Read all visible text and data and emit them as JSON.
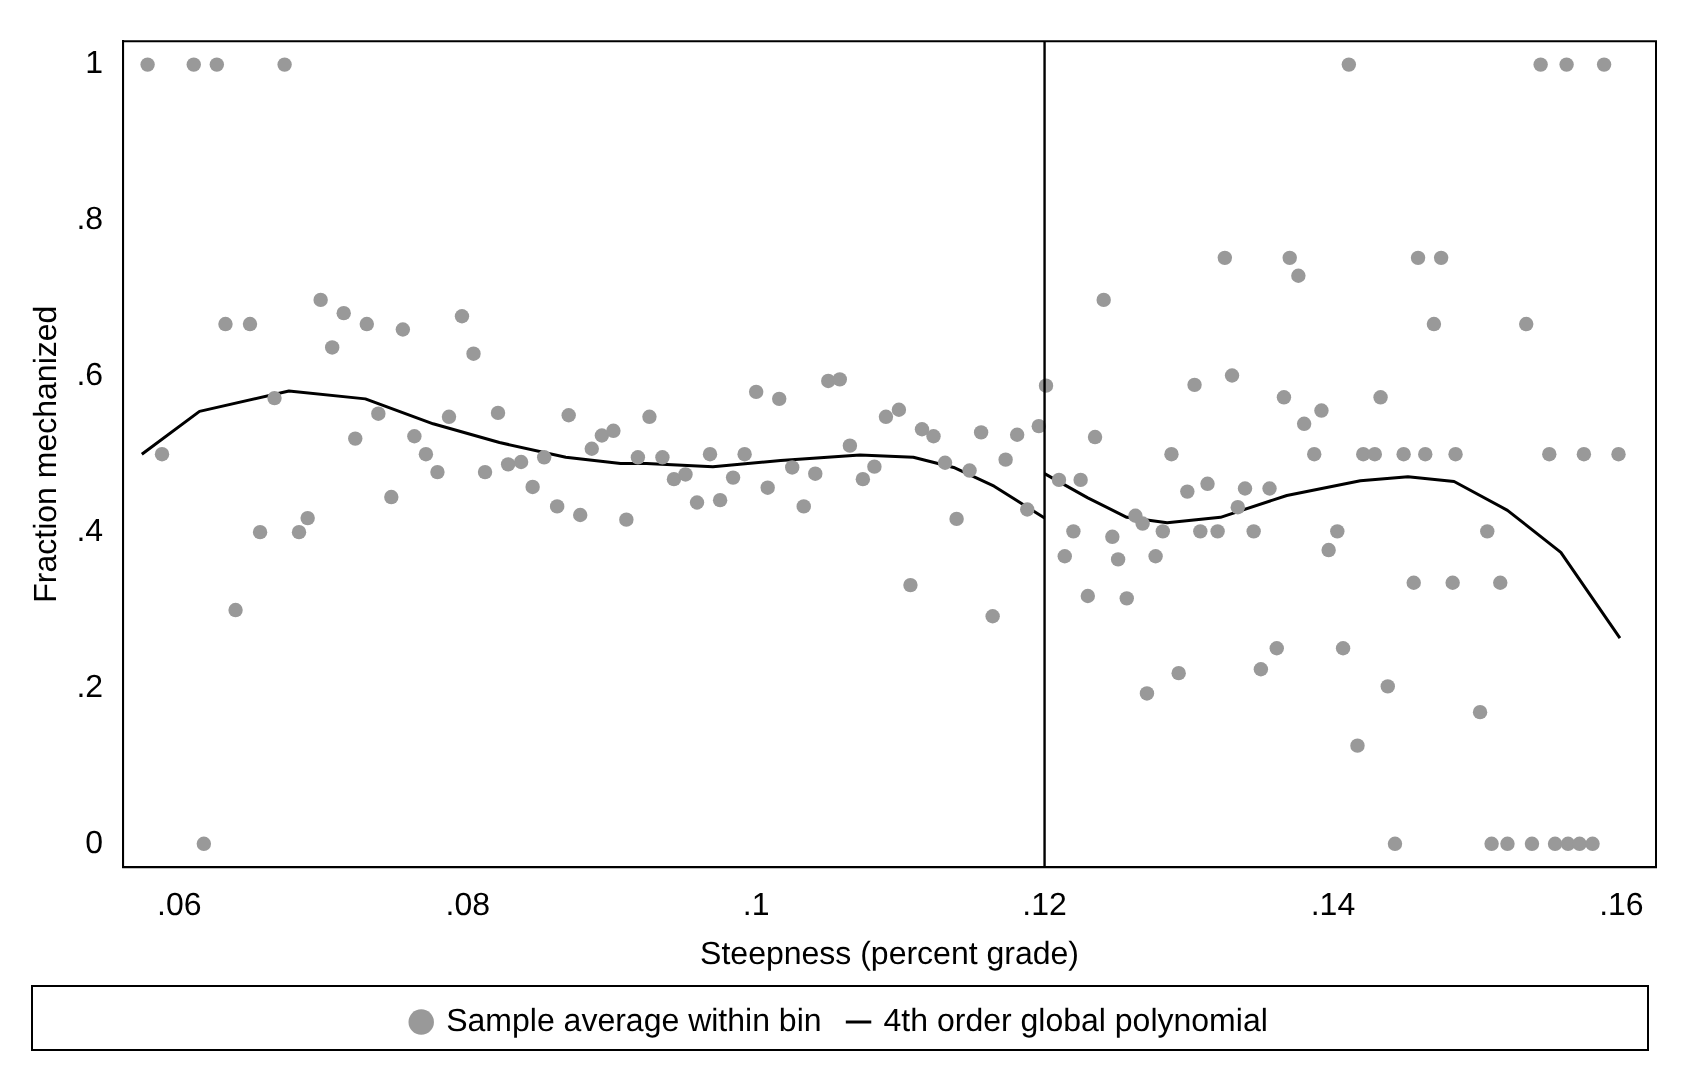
{
  "chart_data": {
    "type": "scatter",
    "xlabel": "Steepness (percent grade)",
    "ylabel": "Fraction mechanized",
    "xlim": [
      0.0561,
      0.1624
    ],
    "ylim": [
      -0.03,
      1.03
    ],
    "xticks": [
      {
        "value": 0.06,
        "label": ".06"
      },
      {
        "value": 0.08,
        "label": ".08"
      },
      {
        "value": 0.1,
        "label": ".1"
      },
      {
        "value": 0.12,
        "label": ".12"
      },
      {
        "value": 0.14,
        "label": ".14"
      },
      {
        "value": 0.16,
        "label": ".16"
      }
    ],
    "yticks": [
      0,
      {
        "value": 0.2,
        "label": ".2"
      },
      {
        "value": 0.4,
        "label": ".4"
      },
      {
        "value": 0.6,
        "label": ".6"
      },
      {
        "value": 0.8,
        "label": ".8"
      },
      1
    ],
    "grid": false,
    "legend": "bottom",
    "marker": "circle",
    "line_style": "solid",
    "ref_lines": [
      {
        "axis": "x",
        "value": 0.12,
        "color": "#000000"
      }
    ],
    "series": [
      {
        "name": "Sample average within bin",
        "type": "scatter",
        "color": "#999999",
        "x": [
          0.0578,
          0.061,
          0.0626,
          0.0673,
          0.0588,
          0.0617,
          0.0632,
          0.0649,
          0.0639,
          0.0656,
          0.0666,
          0.0683,
          0.0689,
          0.0698,
          0.0706,
          0.0714,
          0.0722,
          0.073,
          0.0738,
          0.0747,
          0.0755,
          0.0763,
          0.0771,
          0.0779,
          0.0787,
          0.0796,
          0.0804,
          0.0812,
          0.0821,
          0.0828,
          0.0837,
          0.0845,
          0.0853,
          0.0862,
          0.087,
          0.0878,
          0.0886,
          0.0893,
          0.0901,
          0.091,
          0.0918,
          0.0926,
          0.0935,
          0.0943,
          0.0951,
          0.0959,
          0.0968,
          0.0975,
          0.0984,
          0.0992,
          0.1,
          0.1008,
          0.1016,
          0.1025,
          0.1033,
          0.1041,
          0.105,
          0.1058,
          0.1065,
          0.1074,
          0.1082,
          0.109,
          0.1099,
          0.1107,
          0.1115,
          0.1123,
          0.1131,
          0.1139,
          0.1148,
          0.1156,
          0.1164,
          0.1173,
          0.1181,
          0.1188,
          0.1196,
          0.1201,
          0.121,
          0.1214,
          0.122,
          0.1225,
          0.123,
          0.1235,
          0.1241,
          0.1247,
          0.1251,
          0.1257,
          0.1263,
          0.1268,
          0.1271,
          0.1277,
          0.1282,
          0.1288,
          0.1293,
          0.1299,
          0.1304,
          0.1308,
          0.1313,
          0.132,
          0.1325,
          0.133,
          0.1334,
          0.1339,
          0.1345,
          0.135,
          0.1356,
          0.1361,
          0.1366,
          0.137,
          0.1376,
          0.138,
          0.1387,
          0.1392,
          0.1397,
          0.1403,
          0.1407,
          0.1411,
          0.1417,
          0.1421,
          0.1429,
          0.1433,
          0.1438,
          0.1443,
          0.1449,
          0.1456,
          0.1459,
          0.1464,
          0.147,
          0.1475,
          0.1483,
          0.1485,
          0.1502,
          0.1507,
          0.151,
          0.1516,
          0.1521,
          0.1534,
          0.1538,
          0.1544,
          0.155,
          0.1554,
          0.1562,
          0.1563,
          0.1571,
          0.1574,
          0.158,
          0.1588,
          0.1598
        ],
        "values": [
          1,
          1,
          1,
          1,
          0.5,
          0,
          0.667,
          0.667,
          0.3,
          0.4,
          0.572,
          0.4,
          0.418,
          0.698,
          0.637,
          0.681,
          0.52,
          0.667,
          0.552,
          0.445,
          0.66,
          0.523,
          0.5,
          0.477,
          0.548,
          0.677,
          0.629,
          0.477,
          0.553,
          0.487,
          0.49,
          0.458,
          0.496,
          0.433,
          0.55,
          0.422,
          0.507,
          0.524,
          0.53,
          0.416,
          0.496,
          0.548,
          0.496,
          0.468,
          0.474,
          0.438,
          0.5,
          0.441,
          0.47,
          0.5,
          0.58,
          0.457,
          0.571,
          0.483,
          0.433,
          0.475,
          0.594,
          0.596,
          0.511,
          0.468,
          0.484,
          0.548,
          0.557,
          0.332,
          0.532,
          0.523,
          0.489,
          0.417,
          0.479,
          0.528,
          0.292,
          0.493,
          0.525,
          0.429,
          0.536,
          0.588,
          0.467,
          0.369,
          0.401,
          0.467,
          0.318,
          0.522,
          0.698,
          0.394,
          0.365,
          0.315,
          0.421,
          0.411,
          0.193,
          0.369,
          0.401,
          0.5,
          0.219,
          0.452,
          0.589,
          0.401,
          0.462,
          0.401,
          0.752,
          0.601,
          0.432,
          0.456,
          0.401,
          0.224,
          0.456,
          0.251,
          0.573,
          0.752,
          0.729,
          0.539,
          0.5,
          0.556,
          0.377,
          0.401,
          0.251,
          1,
          0.126,
          0.5,
          0.5,
          0.573,
          0.202,
          0,
          0.5,
          0.335,
          0.752,
          0.5,
          0.667,
          0.752,
          0.335,
          0.5,
          0.169,
          0.401,
          0,
          0.335,
          0,
          0.667,
          0,
          1,
          0.5,
          0,
          1,
          0,
          0,
          0.5,
          0,
          1,
          0.5
        ]
      },
      {
        "name": "4th order global polynomial",
        "type": "line",
        "color": "#000000",
        "marker": "none",
        "x": [
          0.0574,
          0.0614,
          0.0676,
          0.0729,
          0.0776,
          0.0822,
          0.0868,
          0.0906,
          0.0924,
          0.097,
          0.1017,
          0.1072,
          0.1109,
          0.1137,
          0.1165,
          0.12
        ],
        "values": [
          0.5,
          0.555,
          0.581,
          0.571,
          0.539,
          0.515,
          0.496,
          0.488,
          0.488,
          0.484,
          0.492,
          0.499,
          0.496,
          0.483,
          0.459,
          0.418
        ]
      },
      {
        "type": "line",
        "color": "#000000",
        "marker": "none",
        "x": [
          0.12,
          0.123,
          0.1257,
          0.1285,
          0.1322,
          0.1368,
          0.1419,
          0.1452,
          0.1484,
          0.1521,
          0.1558,
          0.1599
        ],
        "values": [
          0.475,
          0.444,
          0.419,
          0.412,
          0.419,
          0.447,
          0.466,
          0.471,
          0.465,
          0.428,
          0.374,
          0.264
        ]
      }
    ]
  }
}
